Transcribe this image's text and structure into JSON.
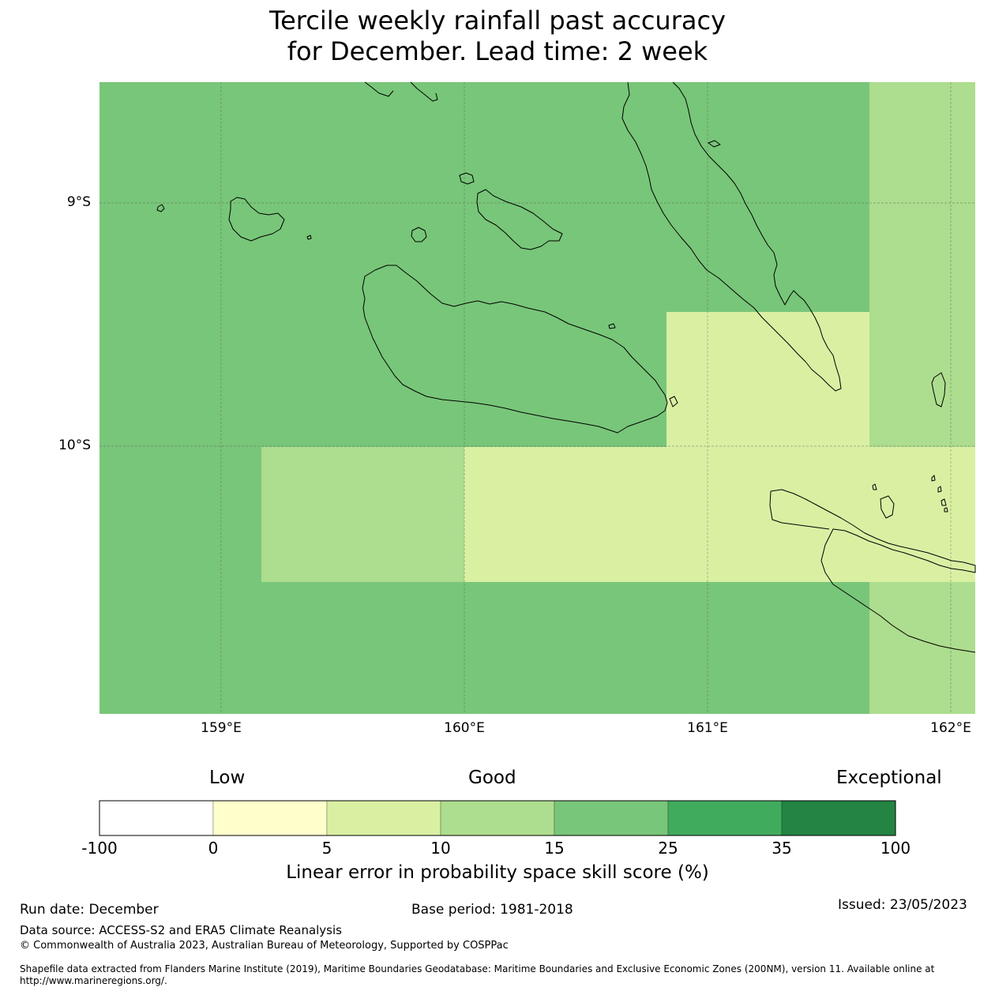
{
  "title": {
    "line1": "Tercile weekly rainfall past accuracy",
    "line2": "for December. Lead time: 2 week"
  },
  "map": {
    "lat_labels": [
      "9°S",
      "10°S"
    ],
    "lon_labels": [
      "159°E",
      "160°E",
      "161°E",
      "162°E"
    ],
    "land_outline_color": "#000000",
    "grid_line_color": "#555555"
  },
  "skill_field": [
    {
      "lat": [
        -9.5,
        -10.0
      ],
      "lon": [
        160.83,
        161.67
      ],
      "category": "5-10"
    },
    {
      "lat": [
        -10.0,
        -10.55
      ],
      "lon": [
        160.0,
        162.1
      ],
      "category": "5-10"
    },
    {
      "lat": [
        -10.0,
        -10.55
      ],
      "lon": [
        159.17,
        160.0
      ],
      "category": "10-15"
    },
    {
      "lat": [
        -8.5,
        -10.0
      ],
      "lon": [
        161.67,
        162.1
      ],
      "category": "10-15"
    },
    {
      "lat": [
        -10.55,
        -11.1
      ],
      "lon": [
        161.67,
        162.1
      ],
      "category": "10-15"
    },
    {
      "lat": [
        -8.5,
        -11.1
      ],
      "lon": [
        158.5,
        162.1
      ],
      "category": "15-25 (remaining area)"
    }
  ],
  "colorbar": {
    "category_labels": {
      "low": "Low",
      "good": "Good",
      "exceptional": "Exceptional"
    },
    "ticks": [
      "-100",
      "0",
      "5",
      "10",
      "15",
      "25",
      "35",
      "100"
    ],
    "colors": [
      "#ffffff",
      "#ffffcc",
      "#d9f0a3",
      "#addd8e",
      "#78c679",
      "#41ab5d",
      "#238443"
    ],
    "title": "Linear error in probability space skill score (%)"
  },
  "footer": {
    "run_date": "Run date: December",
    "base_period": "Base period: 1981-2018",
    "issued": "Issued: 23/05/2023",
    "data_source": "Data source: ACCESS-S2 and ERA5 Climate Reanalysis",
    "copyright": "© Commonwealth of Australia 2023, Australian Bureau of Meteorology, Supported by COSPPac",
    "shapefile": "Shapefile data extracted from Flanders Marine Institute (2019), Maritime Boundaries Geodatabase: Maritime Boundaries and Exclusive Economic Zones (200NM), version 11. Available online at http://www.marineregions.org/."
  }
}
